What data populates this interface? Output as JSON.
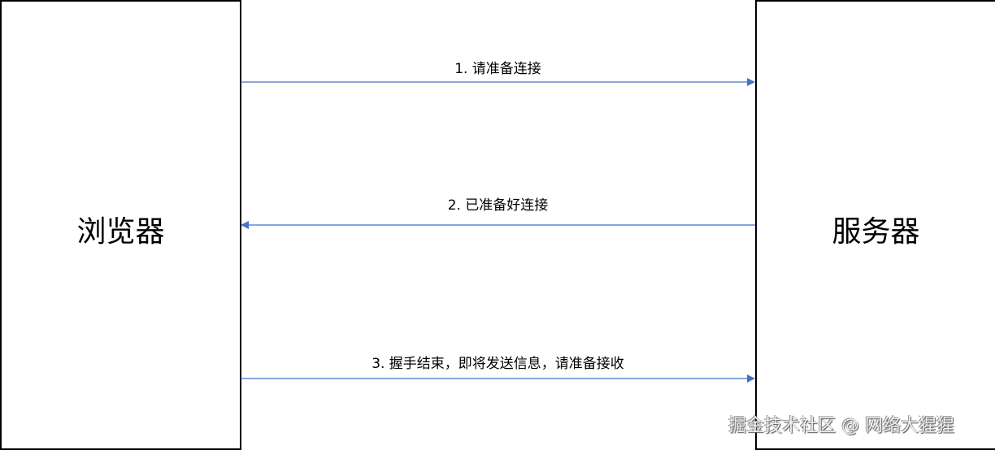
{
  "actors": {
    "browser": "浏览器",
    "server": "服务器"
  },
  "messages": [
    {
      "label": "1. 请准备连接",
      "direction": "browser-to-server"
    },
    {
      "label": "2. 已准备好连接",
      "direction": "server-to-browser"
    },
    {
      "label": "3. 握手结束，即将发送信息，请准备接收",
      "direction": "browser-to-server"
    }
  ],
  "watermark": "掘金技术社区 @ 网络大猩猩",
  "colors": {
    "arrow": "#4472C4",
    "border": "#000000"
  }
}
